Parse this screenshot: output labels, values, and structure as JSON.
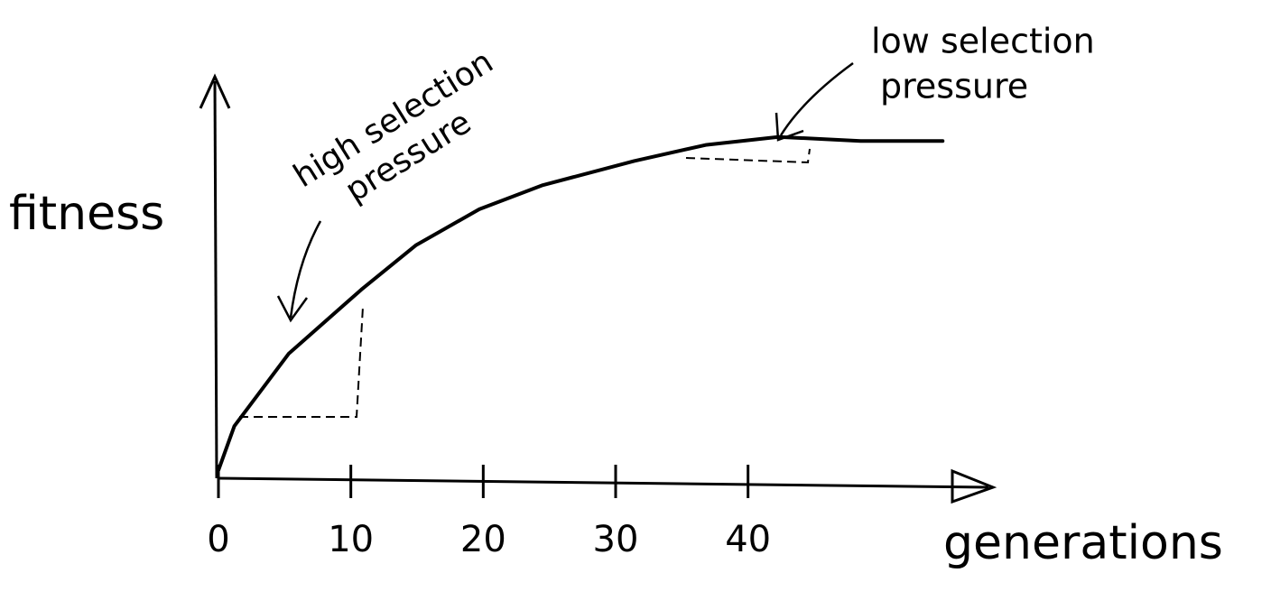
{
  "chart_data": {
    "type": "line",
    "x_label": "generations",
    "y_label": "fitness",
    "x": [
      0,
      1.2,
      5.3,
      10.8,
      14.9,
      19.7,
      24.5,
      31.4,
      36.8,
      42.3,
      48.5,
      54.7
    ],
    "series": [
      {
        "color": "#000000",
        "values": [
          0.02,
          0.13,
          0.31,
          0.47,
          0.58,
          0.67,
          0.73,
          0.79,
          0.83,
          0.85,
          0.84,
          0.84
        ]
      }
    ],
    "xlim": [
      0,
      58.5
    ],
    "ylim": [
      0,
      1
    ],
    "xticks": [
      0,
      10,
      20,
      30,
      40
    ],
    "annotations": [
      [
        "high selection",
        "pressure"
      ],
      [
        "low selection",
        "pressure"
      ]
    ]
  }
}
